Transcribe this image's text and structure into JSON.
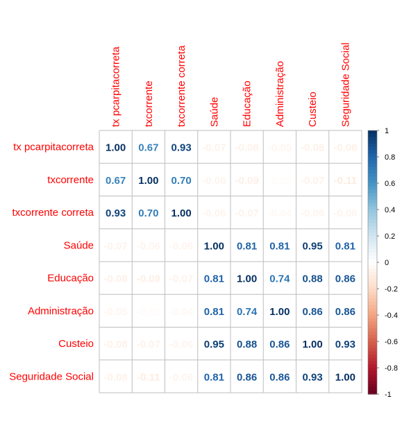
{
  "chart_data": {
    "type": "heatmap",
    "title": "",
    "variables": [
      "tx pcarpitacorreta",
      "txcorrente",
      "txcorrente correta",
      "Saúde",
      "Educação",
      "Administração",
      "Custeio",
      "Seguridade Social"
    ],
    "matrix": [
      [
        1.0,
        0.67,
        0.93,
        -0.07,
        -0.08,
        -0.05,
        -0.08,
        -0.08
      ],
      [
        0.67,
        1.0,
        0.7,
        -0.06,
        -0.09,
        -0.02,
        -0.07,
        -0.11
      ],
      [
        0.93,
        0.7,
        1.0,
        -0.06,
        -0.07,
        -0.04,
        -0.06,
        -0.06
      ],
      [
        -0.07,
        -0.06,
        -0.06,
        1.0,
        0.81,
        0.81,
        0.95,
        0.81
      ],
      [
        -0.08,
        -0.09,
        -0.07,
        0.81,
        1.0,
        0.74,
        0.88,
        0.86
      ],
      [
        -0.05,
        -0.02,
        -0.04,
        0.81,
        0.74,
        1.0,
        0.86,
        0.86
      ],
      [
        -0.08,
        -0.07,
        -0.06,
        0.95,
        0.88,
        0.86,
        1.0,
        0.93
      ],
      [
        -0.08,
        -0.11,
        -0.06,
        0.81,
        0.86,
        0.86,
        0.93,
        1.0
      ]
    ],
    "colorbar": {
      "ticks": [
        1,
        0.8,
        0.6,
        0.4,
        0.2,
        0,
        -0.2,
        -0.4,
        -0.6,
        -0.8,
        -1
      ],
      "tick_labels": [
        "1",
        "0.8",
        "0.6",
        "0.4",
        "0.2",
        "0",
        "-0.2",
        "-0.4",
        "-0.6",
        "-0.8",
        "-1"
      ],
      "range": [
        -1,
        1
      ]
    },
    "colors": {
      "label": "#ff0000",
      "grid": "#bebebe",
      "negative_extreme": "#67001f",
      "neutral": "#ffffff",
      "positive_extreme": "#053061"
    }
  }
}
